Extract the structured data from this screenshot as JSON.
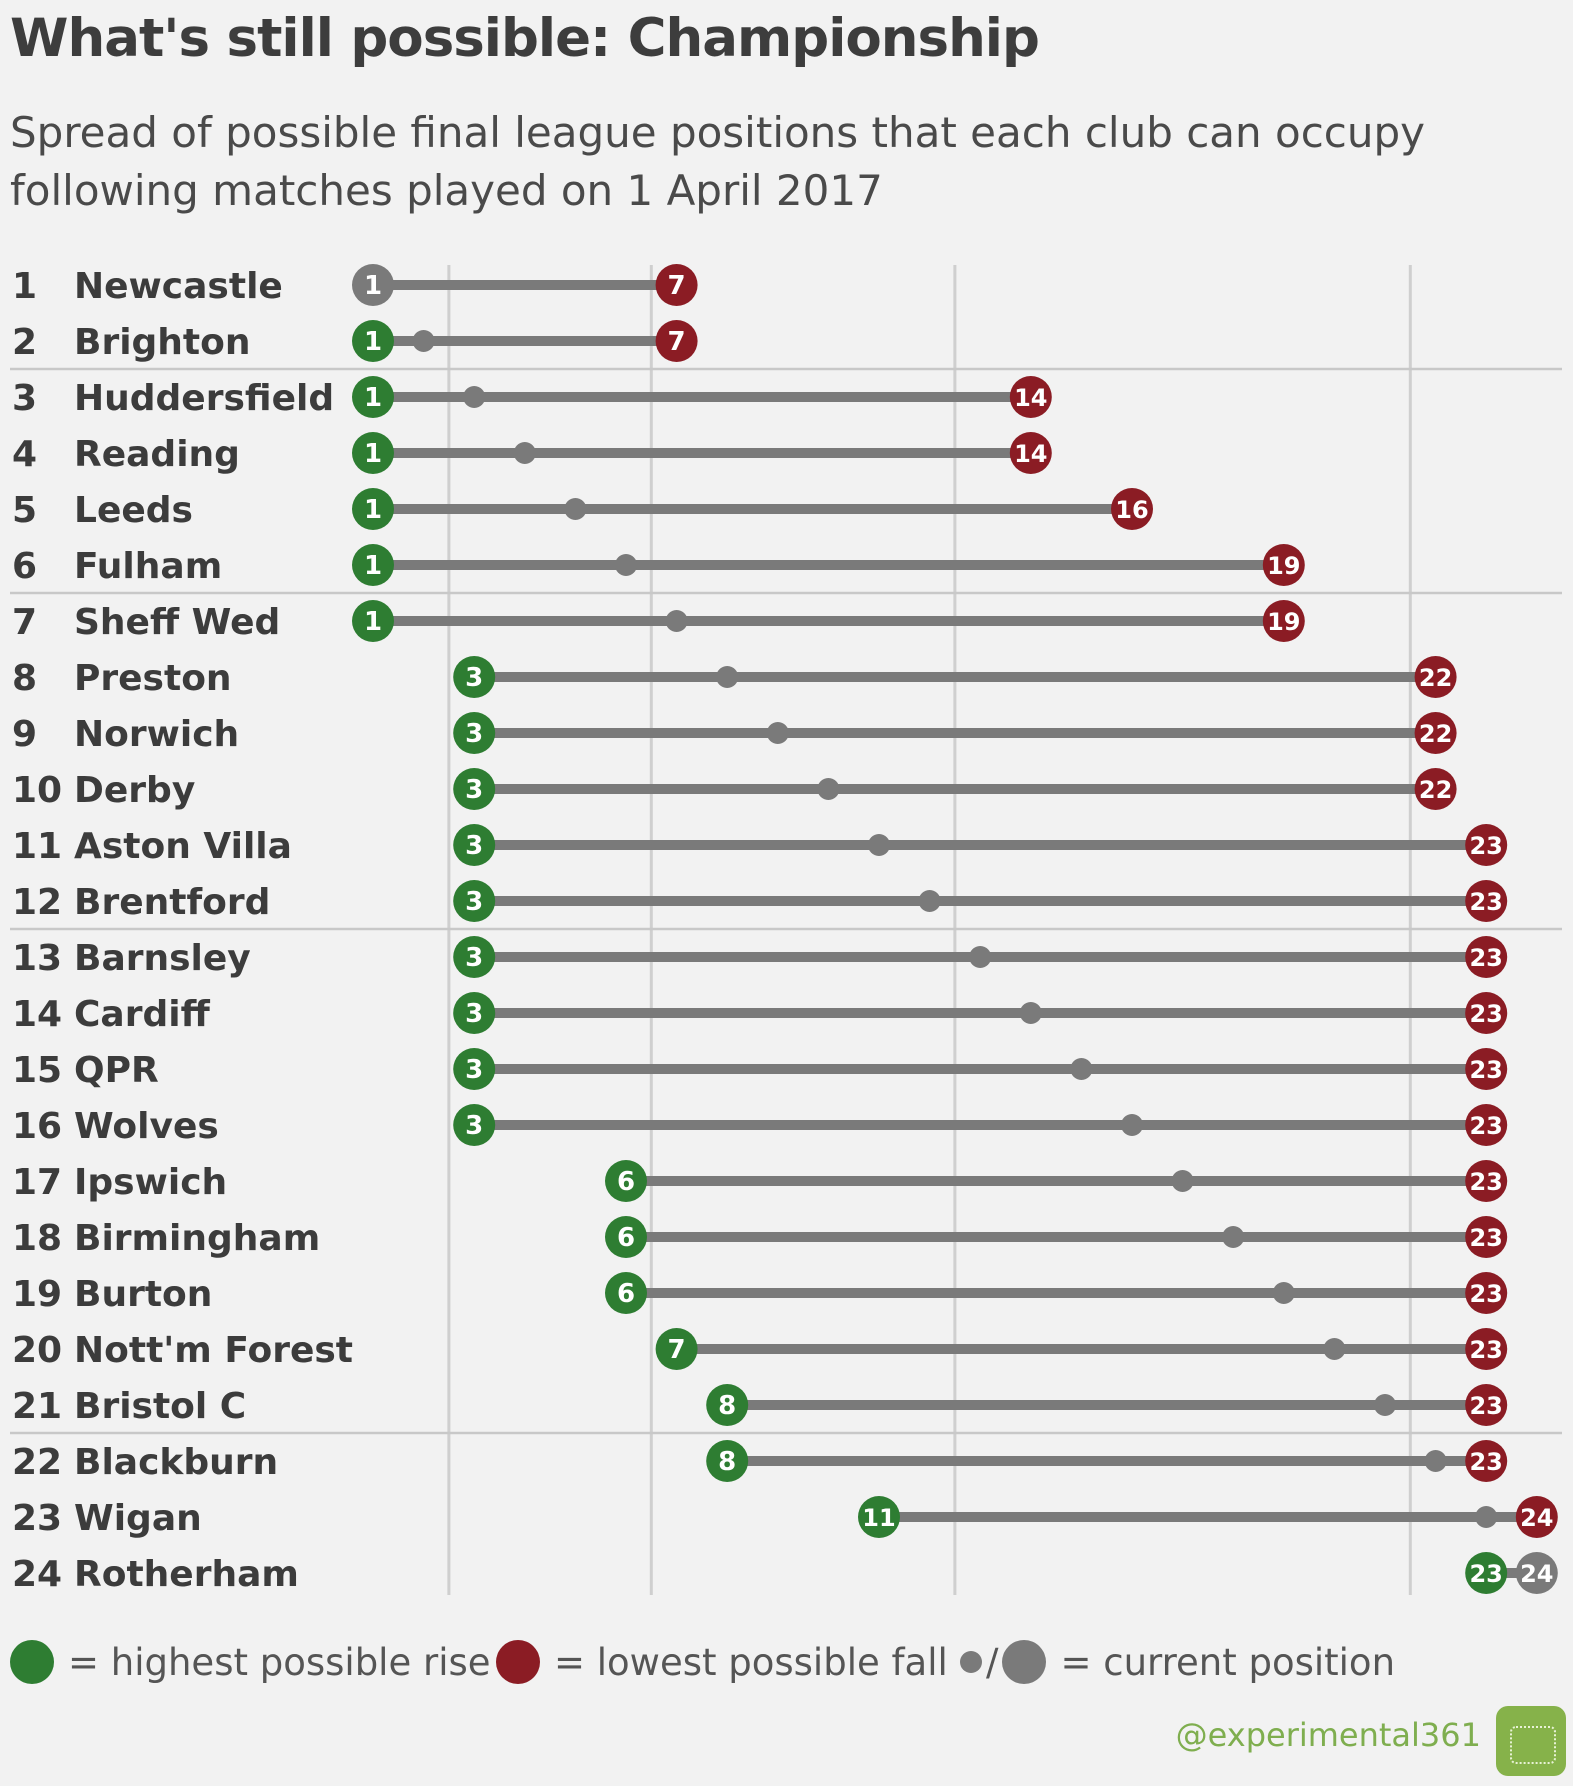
{
  "header": {
    "title": "What's still possible: Championship",
    "subtitle": "Spread of possible final league positions that each club can occupy following matches played on 1 April 2017"
  },
  "chart_data": {
    "type": "dumbbell",
    "title": "What's still possible: Championship",
    "subtitle": "Spread of possible final league positions that each club can occupy following matches played on 1 April 2017",
    "xlim": [
      1,
      24
    ],
    "gridlines_at": [
      2.5,
      6.5,
      12.5,
      21.5
    ],
    "group_separators_after_rank": [
      2,
      6,
      12,
      21
    ],
    "grid": true,
    "teams": [
      {
        "rank": 1,
        "club": "Newcastle",
        "best": 1,
        "worst": 7,
        "current": 1
      },
      {
        "rank": 2,
        "club": "Brighton",
        "best": 1,
        "worst": 7,
        "current": 2
      },
      {
        "rank": 3,
        "club": "Huddersfield",
        "best": 1,
        "worst": 14,
        "current": 3
      },
      {
        "rank": 4,
        "club": "Reading",
        "best": 1,
        "worst": 14,
        "current": 4
      },
      {
        "rank": 5,
        "club": "Leeds",
        "best": 1,
        "worst": 16,
        "current": 5
      },
      {
        "rank": 6,
        "club": "Fulham",
        "best": 1,
        "worst": 19,
        "current": 6
      },
      {
        "rank": 7,
        "club": "Sheff Wed",
        "best": 1,
        "worst": 19,
        "current": 7
      },
      {
        "rank": 8,
        "club": "Preston",
        "best": 3,
        "worst": 22,
        "current": 8
      },
      {
        "rank": 9,
        "club": "Norwich",
        "best": 3,
        "worst": 22,
        "current": 9
      },
      {
        "rank": 10,
        "club": "Derby",
        "best": 3,
        "worst": 22,
        "current": 10
      },
      {
        "rank": 11,
        "club": "Aston Villa",
        "best": 3,
        "worst": 23,
        "current": 11
      },
      {
        "rank": 12,
        "club": "Brentford",
        "best": 3,
        "worst": 23,
        "current": 12
      },
      {
        "rank": 13,
        "club": "Barnsley",
        "best": 3,
        "worst": 23,
        "current": 13
      },
      {
        "rank": 14,
        "club": "Cardiff",
        "best": 3,
        "worst": 23,
        "current": 14
      },
      {
        "rank": 15,
        "club": "QPR",
        "best": 3,
        "worst": 23,
        "current": 15
      },
      {
        "rank": 16,
        "club": "Wolves",
        "best": 3,
        "worst": 23,
        "current": 16
      },
      {
        "rank": 17,
        "club": "Ipswich",
        "best": 6,
        "worst": 23,
        "current": 17
      },
      {
        "rank": 18,
        "club": "Birmingham",
        "best": 6,
        "worst": 23,
        "current": 18
      },
      {
        "rank": 19,
        "club": "Burton",
        "best": 6,
        "worst": 23,
        "current": 19
      },
      {
        "rank": 20,
        "club": "Nott'm Forest",
        "best": 7,
        "worst": 23,
        "current": 20
      },
      {
        "rank": 21,
        "club": "Bristol C",
        "best": 8,
        "worst": 23,
        "current": 21
      },
      {
        "rank": 22,
        "club": "Blackburn",
        "best": 8,
        "worst": 23,
        "current": 22
      },
      {
        "rank": 23,
        "club": "Wigan",
        "best": 11,
        "worst": 24,
        "current": 23
      },
      {
        "rank": 24,
        "club": "Rotherham",
        "best": 23,
        "worst": 24,
        "current": 24
      }
    ]
  },
  "legend": {
    "rise_label": "= highest possible rise",
    "fall_label": "= lowest possible fall",
    "current_label": "= current position",
    "separator": "/"
  },
  "credit": {
    "handle": "@experimental361"
  },
  "colors": {
    "rise": "#2e7d32",
    "fall": "#8b1c24",
    "current": "#7a7a7a",
    "bar": "#7a7a7a",
    "grid": "#cfcfcf",
    "separator": "#c8c8c8"
  }
}
